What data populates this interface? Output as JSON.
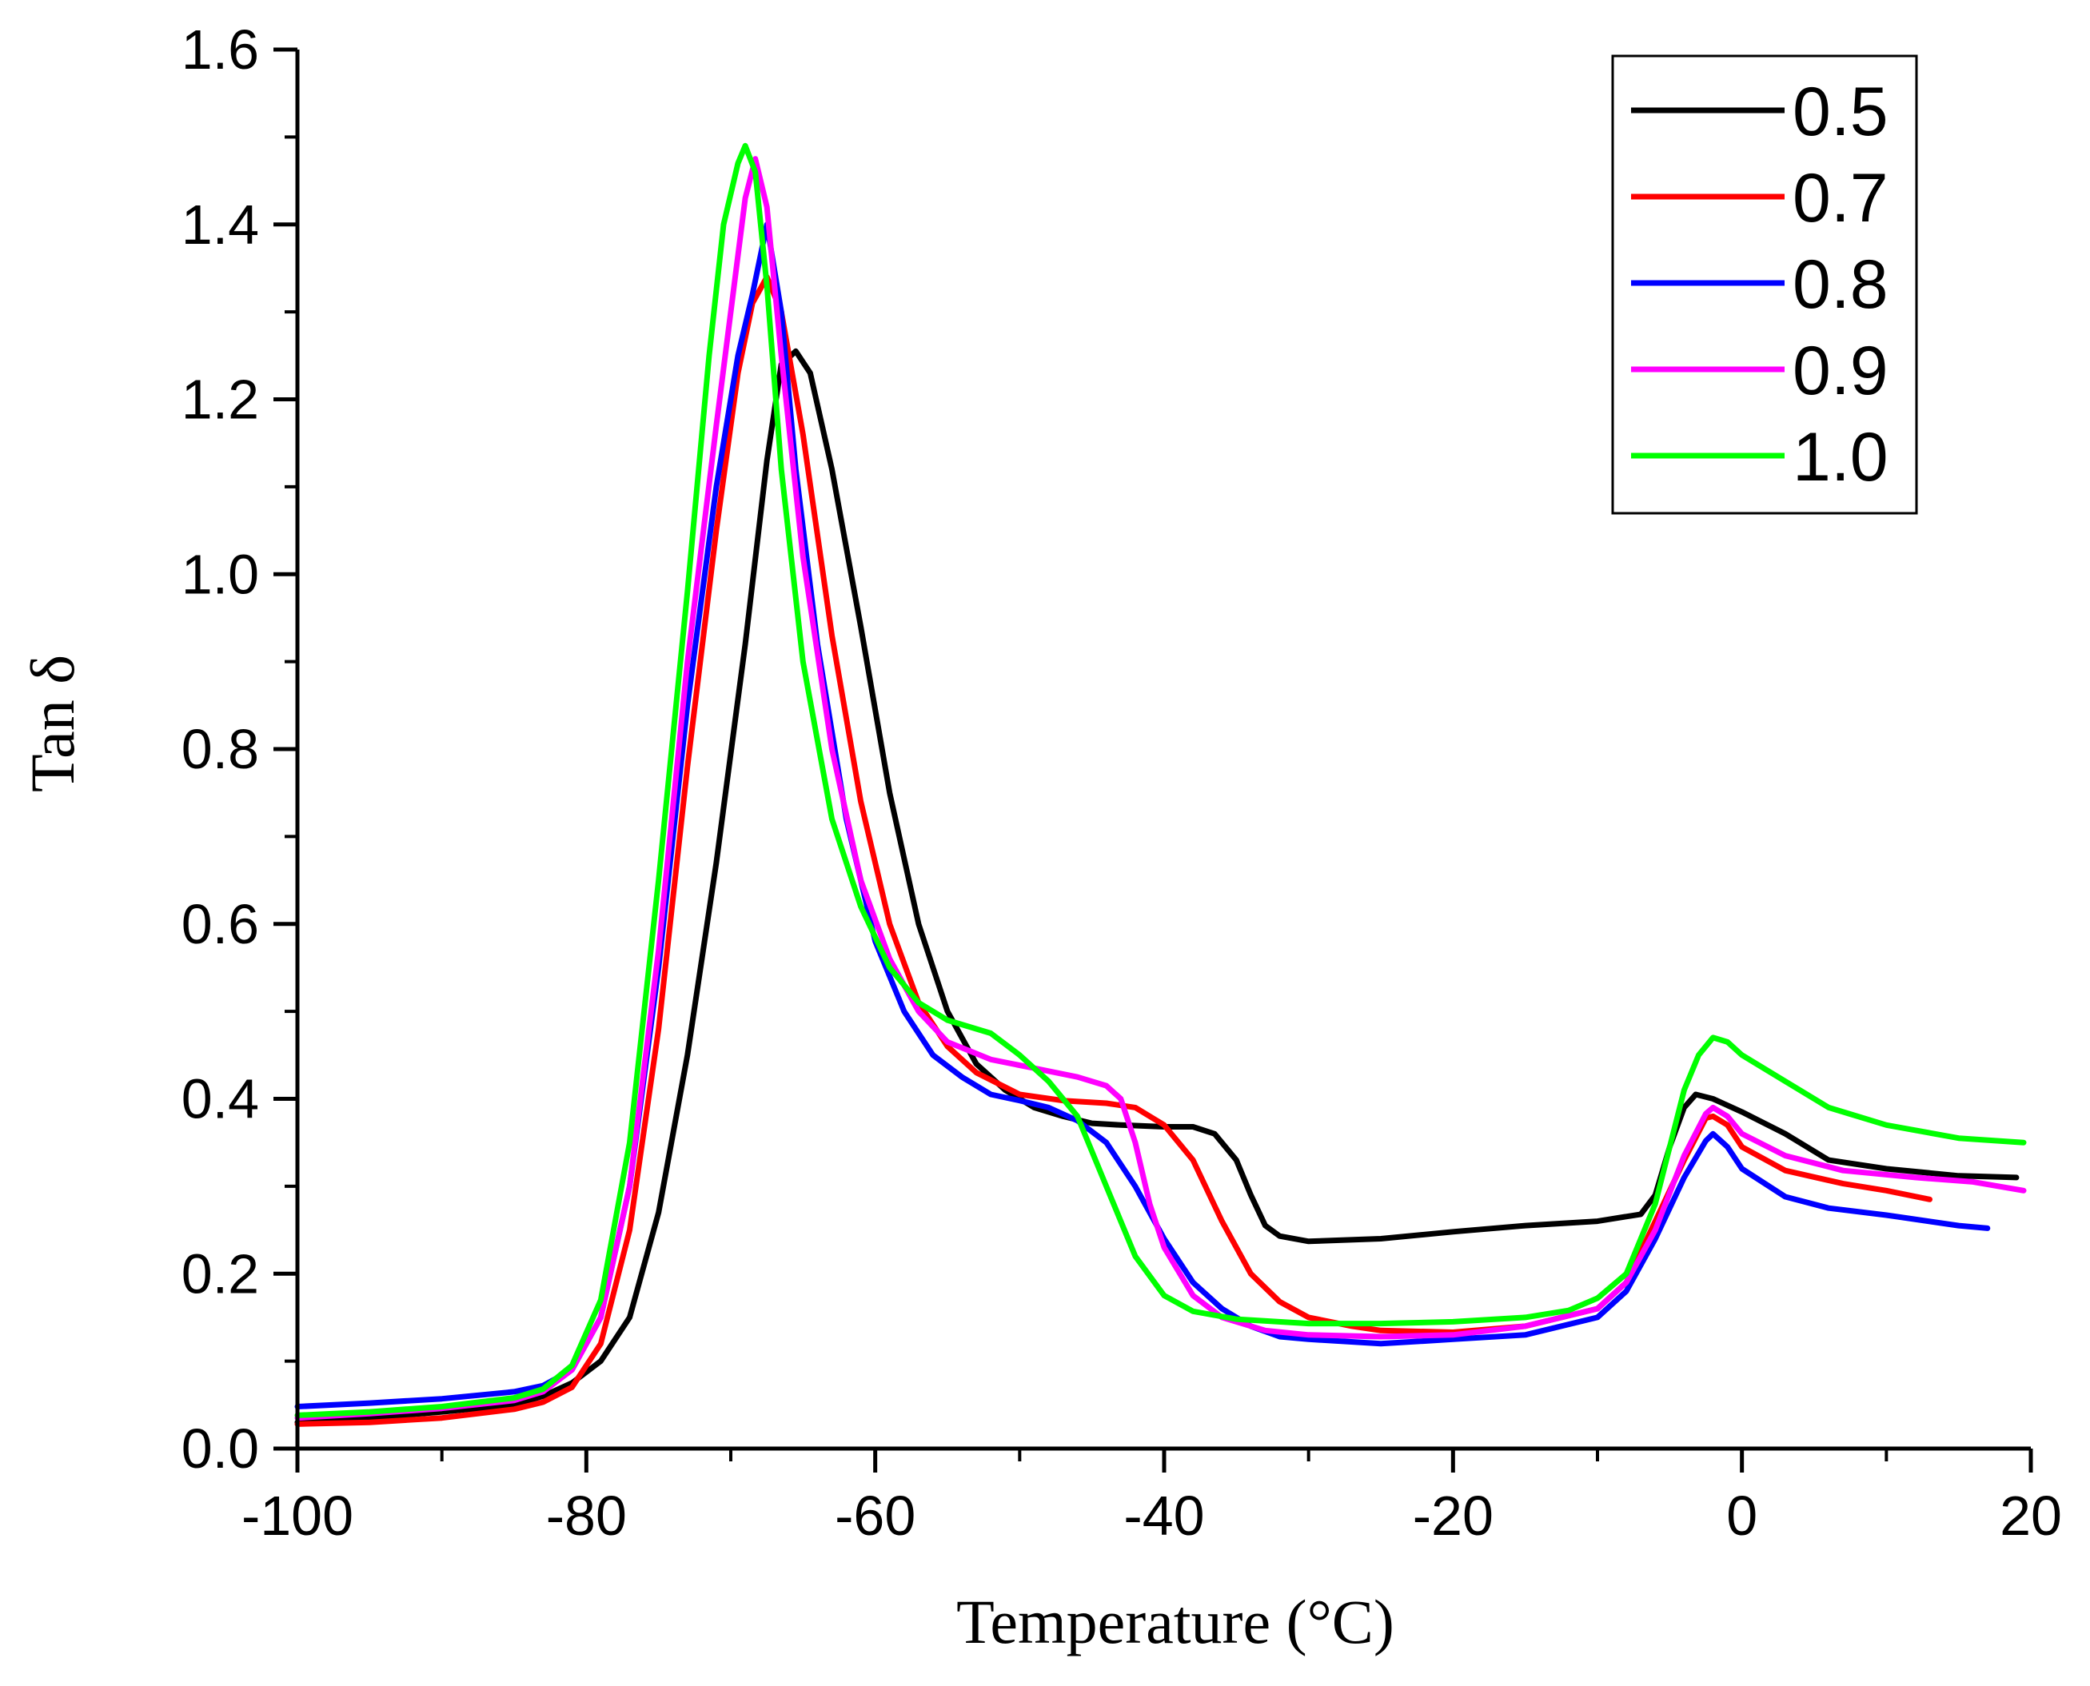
{
  "chart_data": {
    "type": "line",
    "title": "",
    "xlabel": "Temperature (°C)",
    "ylabel": "Tan δ",
    "xlim": [
      -100,
      20
    ],
    "ylim": [
      0.0,
      1.6
    ],
    "xticks": [
      -100,
      -80,
      -60,
      -40,
      -20,
      0,
      20
    ],
    "xtick_labels": [
      "-100",
      "-80",
      "-60",
      "-40",
      "-20",
      "0",
      "20"
    ],
    "yticks": [
      0.0,
      0.2,
      0.4,
      0.6,
      0.8,
      1.0,
      1.2,
      1.4,
      1.6
    ],
    "ytick_labels": [
      "0.0",
      "0.2",
      "0.4",
      "0.6",
      "0.8",
      "1.0",
      "1.2",
      "1.4",
      "1.6"
    ],
    "grid": false,
    "legend_position": "top-right",
    "series": [
      {
        "name": "0.5",
        "color": "#000000",
        "points": [
          [
            -100,
            0.03
          ],
          [
            -95,
            0.035
          ],
          [
            -90,
            0.042
          ],
          [
            -85,
            0.05
          ],
          [
            -83,
            0.06
          ],
          [
            -81,
            0.075
          ],
          [
            -79,
            0.1
          ],
          [
            -77,
            0.15
          ],
          [
            -75,
            0.27
          ],
          [
            -73,
            0.45
          ],
          [
            -71,
            0.67
          ],
          [
            -69,
            0.92
          ],
          [
            -67.5,
            1.13
          ],
          [
            -66.5,
            1.24
          ],
          [
            -65.5,
            1.255
          ],
          [
            -64.5,
            1.23
          ],
          [
            -63,
            1.12
          ],
          [
            -61,
            0.94
          ],
          [
            -59,
            0.75
          ],
          [
            -57,
            0.6
          ],
          [
            -55,
            0.5
          ],
          [
            -53,
            0.44
          ],
          [
            -51,
            0.41
          ],
          [
            -49,
            0.39
          ],
          [
            -47,
            0.38
          ],
          [
            -45,
            0.372
          ],
          [
            -43,
            0.37
          ],
          [
            -40,
            0.368
          ],
          [
            -38,
            0.368
          ],
          [
            -36.5,
            0.36
          ],
          [
            -35,
            0.33
          ],
          [
            -34,
            0.29
          ],
          [
            -33,
            0.255
          ],
          [
            -32,
            0.243
          ],
          [
            -30,
            0.237
          ],
          [
            -25,
            0.24
          ],
          [
            -20,
            0.248
          ],
          [
            -15,
            0.255
          ],
          [
            -10,
            0.26
          ],
          [
            -7,
            0.268
          ],
          [
            -6,
            0.29
          ],
          [
            -5,
            0.345
          ],
          [
            -4,
            0.39
          ],
          [
            -3.2,
            0.405
          ],
          [
            -2,
            0.4
          ],
          [
            0,
            0.385
          ],
          [
            3,
            0.36
          ],
          [
            6,
            0.33
          ],
          [
            10,
            0.32
          ],
          [
            15,
            0.312
          ],
          [
            19,
            0.31
          ]
        ]
      },
      {
        "name": "0.7",
        "color": "#ff0000",
        "points": [
          [
            -100,
            0.028
          ],
          [
            -95,
            0.03
          ],
          [
            -90,
            0.035
          ],
          [
            -85,
            0.045
          ],
          [
            -83,
            0.053
          ],
          [
            -81,
            0.07
          ],
          [
            -79,
            0.12
          ],
          [
            -77,
            0.25
          ],
          [
            -75,
            0.48
          ],
          [
            -73,
            0.78
          ],
          [
            -71,
            1.05
          ],
          [
            -69.5,
            1.23
          ],
          [
            -68.5,
            1.31
          ],
          [
            -67.5,
            1.34
          ],
          [
            -66.5,
            1.3
          ],
          [
            -65,
            1.16
          ],
          [
            -63,
            0.93
          ],
          [
            -61,
            0.74
          ],
          [
            -59,
            0.6
          ],
          [
            -57,
            0.51
          ],
          [
            -55,
            0.46
          ],
          [
            -53,
            0.43
          ],
          [
            -50,
            0.405
          ],
          [
            -47,
            0.398
          ],
          [
            -44,
            0.395
          ],
          [
            -42,
            0.39
          ],
          [
            -40,
            0.37
          ],
          [
            -38,
            0.33
          ],
          [
            -36,
            0.26
          ],
          [
            -34,
            0.2
          ],
          [
            -32,
            0.168
          ],
          [
            -30,
            0.15
          ],
          [
            -27,
            0.14
          ],
          [
            -25,
            0.135
          ],
          [
            -20,
            0.133
          ],
          [
            -15,
            0.14
          ],
          [
            -10,
            0.16
          ],
          [
            -8,
            0.19
          ],
          [
            -6,
            0.26
          ],
          [
            -4,
            0.33
          ],
          [
            -2.5,
            0.378
          ],
          [
            -2,
            0.38
          ],
          [
            -1,
            0.37
          ],
          [
            0,
            0.345
          ],
          [
            3,
            0.318
          ],
          [
            7,
            0.303
          ],
          [
            10,
            0.295
          ],
          [
            13,
            0.285
          ]
        ]
      },
      {
        "name": "0.8",
        "color": "#0000ff",
        "points": [
          [
            -100,
            0.048
          ],
          [
            -95,
            0.052
          ],
          [
            -90,
            0.057
          ],
          [
            -85,
            0.065
          ],
          [
            -83,
            0.072
          ],
          [
            -81,
            0.09
          ],
          [
            -79,
            0.15
          ],
          [
            -77,
            0.3
          ],
          [
            -75,
            0.55
          ],
          [
            -73,
            0.85
          ],
          [
            -71,
            1.1
          ],
          [
            -69.5,
            1.25
          ],
          [
            -68.5,
            1.32
          ],
          [
            -67.5,
            1.4
          ],
          [
            -66.5,
            1.3
          ],
          [
            -65.5,
            1.12
          ],
          [
            -64,
            0.92
          ],
          [
            -62,
            0.72
          ],
          [
            -60,
            0.58
          ],
          [
            -58,
            0.5
          ],
          [
            -56,
            0.45
          ],
          [
            -54,
            0.425
          ],
          [
            -52,
            0.405
          ],
          [
            -50,
            0.398
          ],
          [
            -48,
            0.39
          ],
          [
            -46,
            0.375
          ],
          [
            -44,
            0.35
          ],
          [
            -42,
            0.3
          ],
          [
            -40,
            0.24
          ],
          [
            -38,
            0.19
          ],
          [
            -36,
            0.16
          ],
          [
            -34,
            0.14
          ],
          [
            -32,
            0.128
          ],
          [
            -30,
            0.125
          ],
          [
            -25,
            0.12
          ],
          [
            -20,
            0.125
          ],
          [
            -15,
            0.13
          ],
          [
            -10,
            0.15
          ],
          [
            -8,
            0.18
          ],
          [
            -6,
            0.24
          ],
          [
            -4,
            0.31
          ],
          [
            -2.5,
            0.352
          ],
          [
            -2,
            0.36
          ],
          [
            -1,
            0.345
          ],
          [
            0,
            0.32
          ],
          [
            3,
            0.288
          ],
          [
            6,
            0.275
          ],
          [
            10,
            0.267
          ],
          [
            15,
            0.255
          ],
          [
            17,
            0.252
          ]
        ]
      },
      {
        "name": "0.9",
        "color": "#ff00ff",
        "points": [
          [
            -100,
            0.035
          ],
          [
            -95,
            0.04
          ],
          [
            -90,
            0.046
          ],
          [
            -85,
            0.055
          ],
          [
            -83,
            0.065
          ],
          [
            -81,
            0.09
          ],
          [
            -79,
            0.15
          ],
          [
            -77,
            0.3
          ],
          [
            -75,
            0.57
          ],
          [
            -73,
            0.9
          ],
          [
            -71,
            1.17
          ],
          [
            -70,
            1.3
          ],
          [
            -69,
            1.43
          ],
          [
            -68.3,
            1.475
          ],
          [
            -67.5,
            1.42
          ],
          [
            -66.5,
            1.25
          ],
          [
            -65,
            1.02
          ],
          [
            -63,
            0.8
          ],
          [
            -61,
            0.65
          ],
          [
            -59,
            0.56
          ],
          [
            -57,
            0.5
          ],
          [
            -55,
            0.465
          ],
          [
            -52,
            0.445
          ],
          [
            -49,
            0.435
          ],
          [
            -46,
            0.425
          ],
          [
            -44,
            0.415
          ],
          [
            -43,
            0.4
          ],
          [
            -42,
            0.35
          ],
          [
            -41,
            0.28
          ],
          [
            -40,
            0.23
          ],
          [
            -38,
            0.175
          ],
          [
            -36,
            0.15
          ],
          [
            -33,
            0.135
          ],
          [
            -30,
            0.13
          ],
          [
            -25,
            0.128
          ],
          [
            -20,
            0.13
          ],
          [
            -15,
            0.14
          ],
          [
            -10,
            0.16
          ],
          [
            -8,
            0.19
          ],
          [
            -6,
            0.25
          ],
          [
            -4,
            0.335
          ],
          [
            -2.5,
            0.383
          ],
          [
            -2,
            0.39
          ],
          [
            -1,
            0.38
          ],
          [
            0,
            0.36
          ],
          [
            3,
            0.335
          ],
          [
            7,
            0.318
          ],
          [
            12,
            0.31
          ],
          [
            16,
            0.305
          ],
          [
            19.5,
            0.295
          ]
        ]
      },
      {
        "name": "1.0",
        "color": "#00ff00",
        "points": [
          [
            -100,
            0.038
          ],
          [
            -95,
            0.042
          ],
          [
            -90,
            0.048
          ],
          [
            -85,
            0.058
          ],
          [
            -83,
            0.068
          ],
          [
            -81,
            0.095
          ],
          [
            -79,
            0.17
          ],
          [
            -77,
            0.35
          ],
          [
            -75,
            0.65
          ],
          [
            -73,
            0.98
          ],
          [
            -71.5,
            1.25
          ],
          [
            -70.5,
            1.4
          ],
          [
            -69.5,
            1.47
          ],
          [
            -69,
            1.49
          ],
          [
            -68.3,
            1.46
          ],
          [
            -67.5,
            1.33
          ],
          [
            -66.5,
            1.12
          ],
          [
            -65,
            0.9
          ],
          [
            -63,
            0.72
          ],
          [
            -61,
            0.62
          ],
          [
            -59,
            0.55
          ],
          [
            -57,
            0.51
          ],
          [
            -55,
            0.49
          ],
          [
            -52,
            0.475
          ],
          [
            -50,
            0.45
          ],
          [
            -48,
            0.42
          ],
          [
            -46,
            0.38
          ],
          [
            -44,
            0.3
          ],
          [
            -42,
            0.22
          ],
          [
            -40,
            0.175
          ],
          [
            -38,
            0.157
          ],
          [
            -35,
            0.148
          ],
          [
            -30,
            0.143
          ],
          [
            -25,
            0.143
          ],
          [
            -20,
            0.145
          ],
          [
            -15,
            0.15
          ],
          [
            -12,
            0.158
          ],
          [
            -10,
            0.172
          ],
          [
            -8,
            0.2
          ],
          [
            -6,
            0.28
          ],
          [
            -4,
            0.41
          ],
          [
            -3,
            0.45
          ],
          [
            -2,
            0.47
          ],
          [
            -1,
            0.465
          ],
          [
            0,
            0.45
          ],
          [
            3,
            0.42
          ],
          [
            6,
            0.39
          ],
          [
            10,
            0.37
          ],
          [
            15,
            0.355
          ],
          [
            19.5,
            0.35
          ]
        ]
      }
    ]
  }
}
